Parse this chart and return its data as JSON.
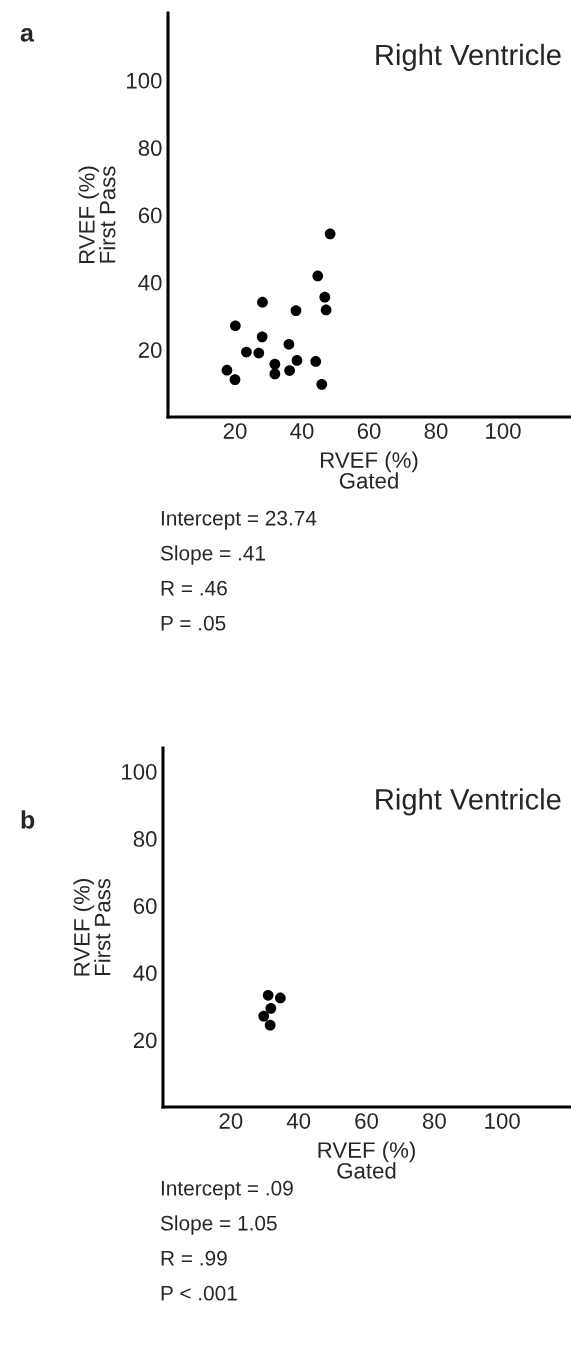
{
  "chart_data": [
    {
      "type": "scatter",
      "title": "Right Ventricle",
      "xlabel": "RVEF (%)\nGated",
      "ylabel": "RVEF (%)\nFirst Pass",
      "color": "#000000",
      "marker": "circle",
      "grid": false,
      "x": [
        17.6,
        20.0,
        20.1,
        23.4,
        27.1,
        28.2,
        28.1,
        31.9,
        31.9,
        36.1,
        36.3,
        38.2,
        38.5,
        44.1,
        44.7,
        45.9,
        46.8,
        47.2,
        48.4
      ],
      "values": [
        13.9,
        11.1,
        27.1,
        19.3,
        19.0,
        34.1,
        23.8,
        15.7,
        12.8,
        21.6,
        13.8,
        31.6,
        16.8,
        16.5,
        41.9,
        9.7,
        35.6,
        31.8,
        54.4
      ],
      "xlim": [
        0,
        120
      ],
      "ylim": [
        0,
        120
      ],
      "xticks": [
        20,
        40,
        60,
        80,
        100
      ],
      "yticks": [
        20,
        40,
        60,
        80,
        100
      ],
      "annotations": [
        "a",
        "Intercept = 23.74",
        "Slope = .41",
        "R = .46",
        "P = .05"
      ]
    },
    {
      "type": "scatter",
      "title": "Right Ventricle",
      "xlabel": "RVEF (%)\nGated",
      "ylabel": "RVEF (%)\nFirst Pass",
      "color": "#000000",
      "marker": "circle",
      "grid": false,
      "x": [
        31.0,
        34.6,
        31.8,
        29.7,
        31.6
      ],
      "values": [
        33.3,
        32.5,
        29.4,
        27.1,
        24.4
      ],
      "xlim": [
        0,
        120
      ],
      "ylim": [
        0,
        107
      ],
      "xticks": [
        20,
        40,
        60,
        80,
        100
      ],
      "yticks": [
        20,
        40,
        60,
        80,
        100
      ],
      "annotations": [
        "b",
        "Intercept = .09",
        "Slope = 1.05",
        "R = .99",
        "P < .001"
      ]
    }
  ]
}
